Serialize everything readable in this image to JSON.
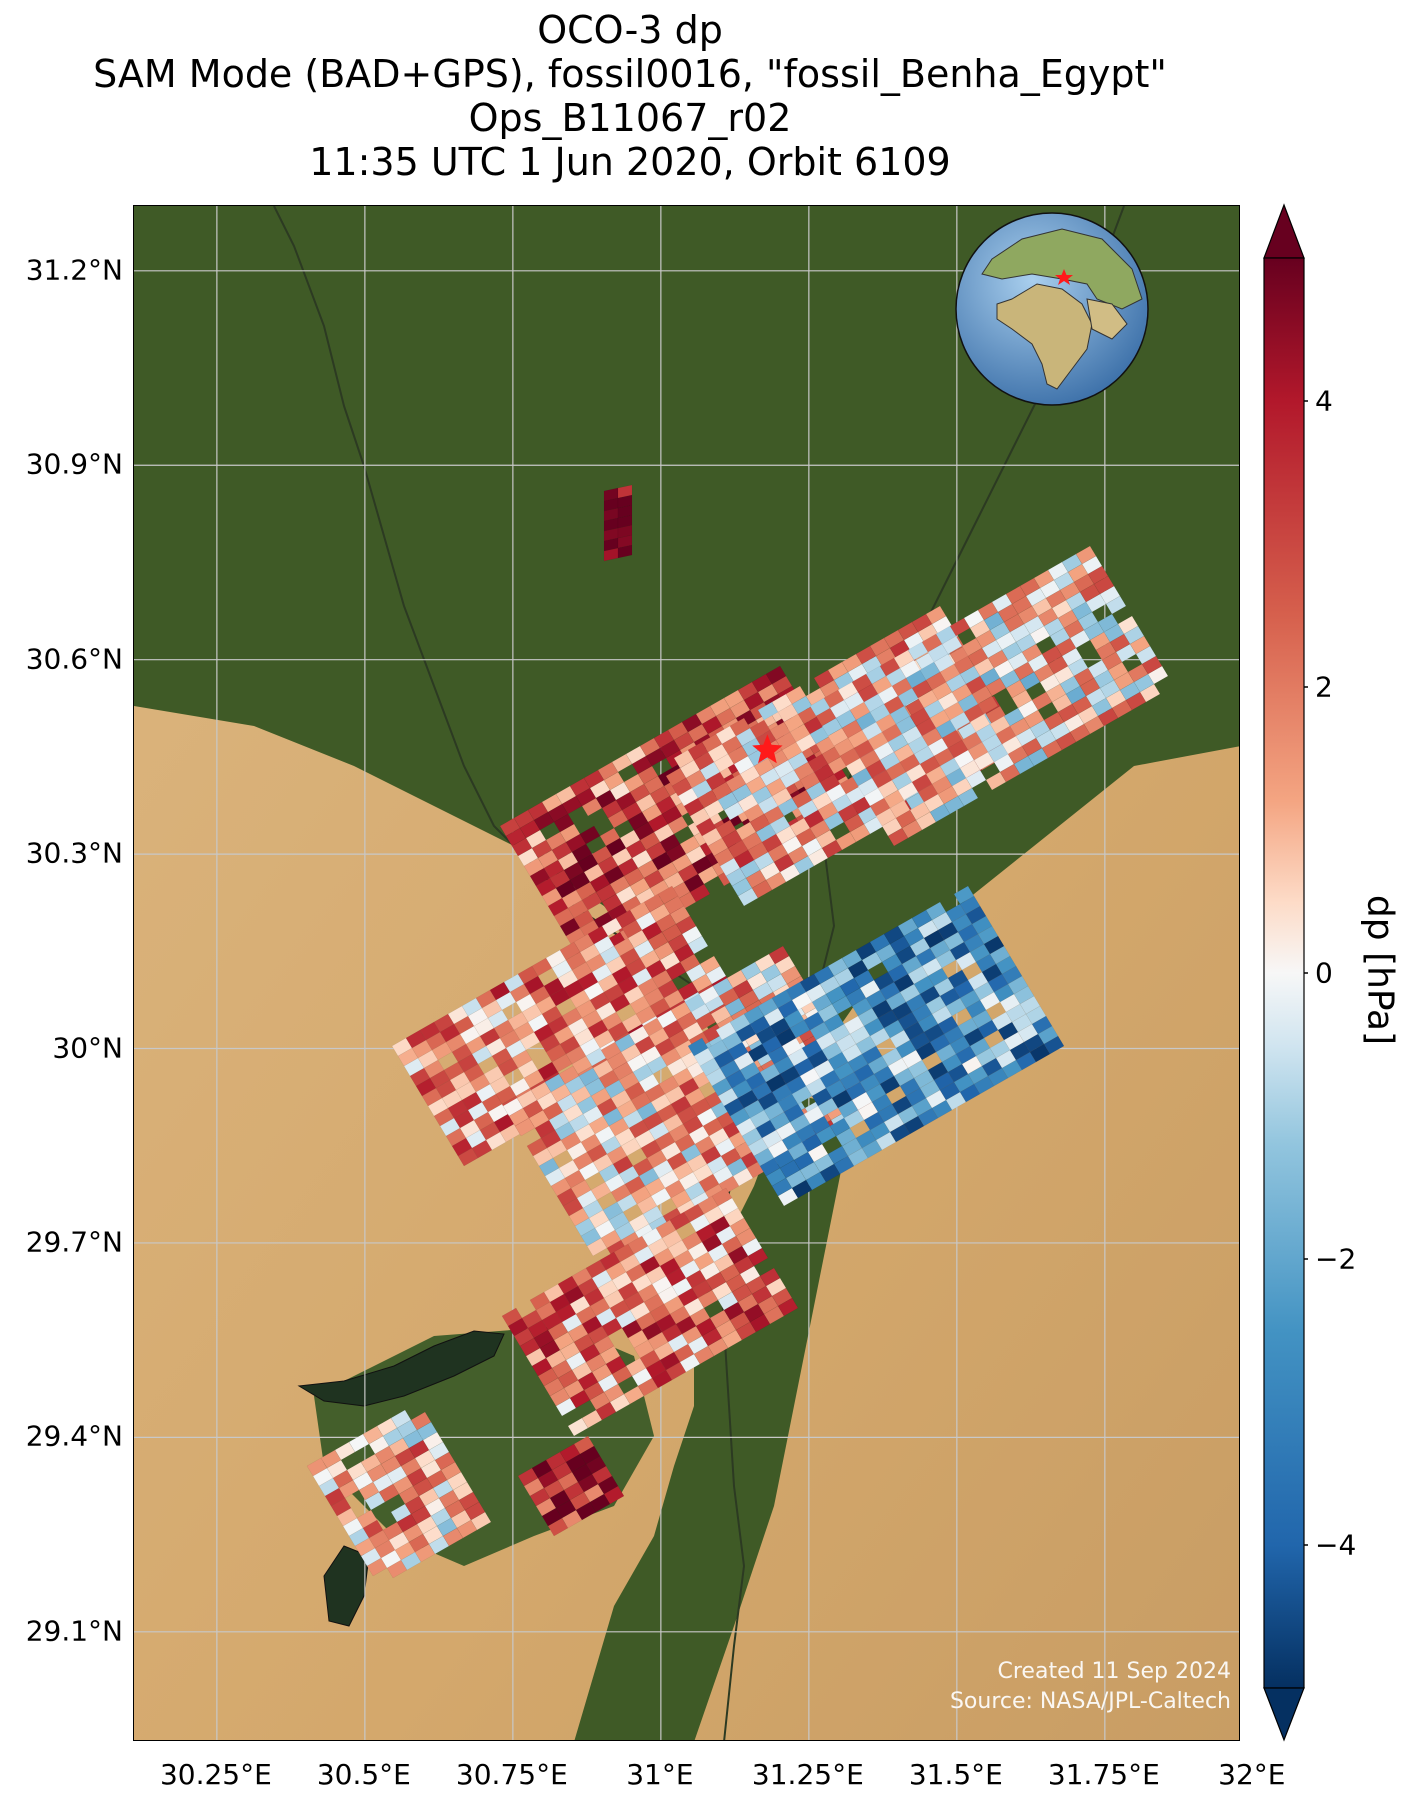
{
  "title_lines": [
    "OCO-3 dp",
    "SAM Mode (BAD+GPS), fossil0016, \"fossil_Benha_Egypt\"",
    "Ops_B11067_r02",
    "11:35 UTC 1 Jun 2020, Orbit 6109"
  ],
  "map": {
    "lat_labels": [
      "31.2°N",
      "30.9°N",
      "30.6°N",
      "30.3°N",
      "30°N",
      "29.7°N",
      "29.4°N",
      "29.1°N"
    ],
    "lat_values": [
      31.2,
      30.9,
      30.6,
      30.3,
      30.0,
      29.7,
      29.4,
      29.1
    ],
    "lon_labels": [
      "30.25°E",
      "30.5°E",
      "30.75°E",
      "31°E",
      "31.25°E",
      "31.5°E",
      "31.75°E",
      "32°E"
    ],
    "lon_values": [
      30.25,
      30.5,
      30.75,
      31.0,
      31.25,
      31.5,
      31.75,
      32.0
    ],
    "lon_range": [
      30.11,
      31.98
    ],
    "lat_range": [
      28.93,
      31.3
    ],
    "target_marker": {
      "lon": 31.18,
      "lat": 30.46,
      "color": "#ff1a1a"
    },
    "credit_lines": [
      "Created 11 Sep 2024",
      "Source: NASA/JPL-Caltech"
    ],
    "inset_globe": {
      "marker_color": "#ff1a1a"
    }
  },
  "colorbar": {
    "label": "dp [hPa]",
    "ticks": [
      "4",
      "2",
      "0",
      "−2",
      "−4"
    ],
    "tick_values": [
      4,
      2,
      0,
      -2,
      -4
    ],
    "range": [
      -5,
      5
    ],
    "extend": "both",
    "colormap": "RdBu_r"
  },
  "colors": {
    "desert": "#d6b07a",
    "vegetation": "#3f5a26",
    "grid": "#c8c8c8"
  }
}
